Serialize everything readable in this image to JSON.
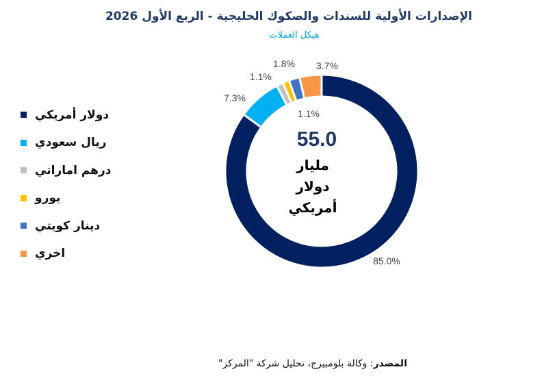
{
  "title": "الإصدارات الأولية للسندات والصكوك الخليجية - الربع الأول 2026",
  "subtitle": "هيكل العملات",
  "center": {
    "value": "55.0",
    "line1": "مليار",
    "line2": "دولار",
    "line3": "أمريكي"
  },
  "source": {
    "label": "المصدر",
    "text": ": وكالة بلومبيرج، تحليل شركة \"المركز\""
  },
  "chart_data": {
    "type": "pie",
    "variant": "donut",
    "categories": [
      "دولار أمريكي",
      "ريال سعودي",
      "درهم اماراتي",
      "يورو",
      "دينار كويتي",
      "اخري"
    ],
    "values": [
      85.0,
      7.3,
      1.1,
      1.1,
      1.8,
      3.7
    ],
    "labels": [
      "85.0%",
      "7.3%",
      "1.1%",
      "1.1%",
      "1.8%",
      "3.7%"
    ],
    "colors": [
      "#002060",
      "#00b0f0",
      "#bfbfbf",
      "#ffc000",
      "#4472c4",
      "#f79646"
    ],
    "legend_position": "left"
  }
}
